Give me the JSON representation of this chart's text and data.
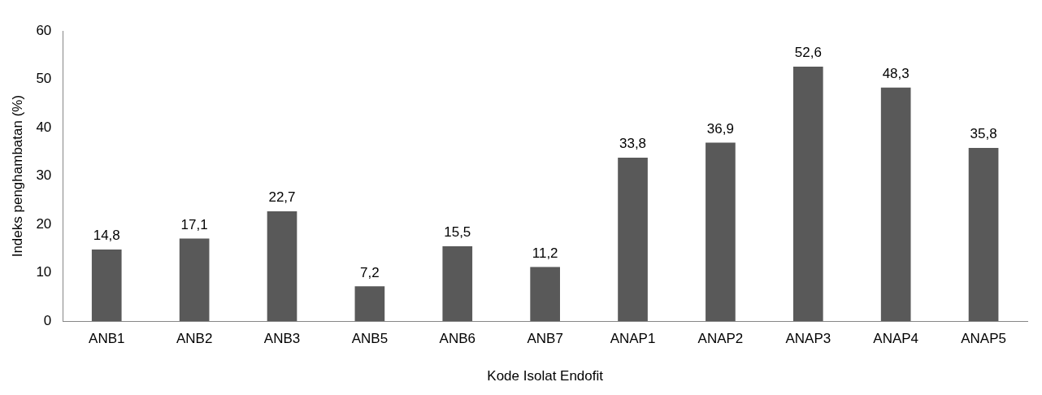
{
  "chart_data": {
    "type": "bar",
    "xlabel": "Kode Isolat Endofit",
    "ylabel": "Indeks penghambatan (%)",
    "categories": [
      "ANB1",
      "ANB2",
      "ANB3",
      "ANB5",
      "ANB6",
      "ANB7",
      "ANAP1",
      "ANAP2",
      "ANAP3",
      "ANAP4",
      "ANAP5"
    ],
    "values": [
      14.8,
      17.1,
      22.7,
      7.2,
      15.5,
      11.2,
      33.8,
      36.9,
      52.6,
      48.3,
      35.8
    ],
    "value_labels": [
      "14,8",
      "17,1",
      "22,7",
      "7,2",
      "15,5",
      "11,2",
      "33,8",
      "36,9",
      "52,6",
      "48,3",
      "35,8"
    ],
    "color": "#595959",
    "ylim": [
      0,
      60
    ],
    "yticks": [
      0,
      10,
      20,
      30,
      40,
      50,
      60
    ],
    "grid": false,
    "legend": false
  }
}
